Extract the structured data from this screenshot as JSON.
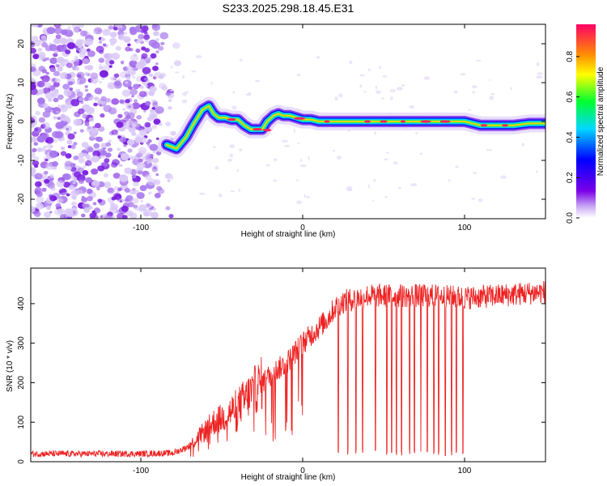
{
  "title": "S233.2025.298.18.45.E31",
  "chart_data": [
    {
      "type": "heatmap",
      "name": "spectrogram",
      "xlabel": "Height of straight line (km)",
      "ylabel": "Frequency (Hz)",
      "xlim": [
        -168,
        150
      ],
      "ylim": [
        -25,
        25
      ],
      "xticks": [
        -100,
        0,
        100
      ],
      "yticks": [
        -20,
        -10,
        0,
        10,
        20
      ],
      "noise_region": [
        -168,
        -82
      ],
      "ridge": {
        "x": [
          -84,
          -78,
          -72,
          -68,
          -65,
          -62,
          -58,
          -55,
          -52,
          -48,
          -44,
          -40,
          -36,
          -32,
          -28,
          -25,
          -22,
          -18,
          -15,
          -12,
          -8,
          -4,
          0,
          5,
          10,
          15,
          20,
          30,
          40,
          50,
          60,
          70,
          80,
          90,
          100,
          110,
          120,
          130,
          140,
          150
        ],
        "y": [
          -6,
          -7,
          -4,
          -1,
          1,
          3,
          4,
          2,
          1,
          1,
          0.5,
          0.5,
          -1,
          -2,
          -2,
          -2,
          0,
          1.5,
          2,
          1.5,
          1.5,
          1,
          0.5,
          0.5,
          0,
          0,
          0,
          0,
          0,
          0,
          0,
          0,
          0,
          0,
          0,
          -1,
          -1,
          -1,
          -0.5,
          -0.5
        ]
      },
      "colorbar": {
        "label": "Normalized spectral amplitude",
        "range": [
          0,
          0.96
        ],
        "ticks": [
          "0.0",
          "0.2",
          "0.4",
          "0.6",
          "0.8"
        ]
      }
    },
    {
      "type": "line",
      "name": "snr",
      "xlabel": "Height of straight line (km)",
      "ylabel": "SNR (10 * v/v)",
      "xlim": [
        -168,
        150
      ],
      "ylim": [
        0,
        490
      ],
      "xticks": [
        -100,
        0,
        100
      ],
      "yticks": [
        0,
        100,
        200,
        300,
        400
      ],
      "color": "#ee2222",
      "envelope": {
        "x": [
          -168,
          -100,
          -80,
          -75,
          -70,
          -65,
          -60,
          -55,
          -50,
          -40,
          -30,
          -20,
          -10,
          0,
          5,
          10,
          15,
          20,
          25,
          30,
          35,
          40,
          60,
          80,
          100,
          120,
          150
        ],
        "y": [
          20,
          20,
          22,
          30,
          40,
          60,
          80,
          100,
          110,
          140,
          180,
          220,
          250,
          300,
          320,
          340,
          360,
          390,
          405,
          410,
          415,
          420,
          420,
          420,
          415,
          420,
          430
        ]
      },
      "dropouts_x": [
        22,
        28,
        33,
        37,
        45,
        52,
        55,
        58,
        61,
        66,
        69,
        73,
        77,
        81,
        84,
        88,
        92,
        95,
        99
      ]
    }
  ]
}
